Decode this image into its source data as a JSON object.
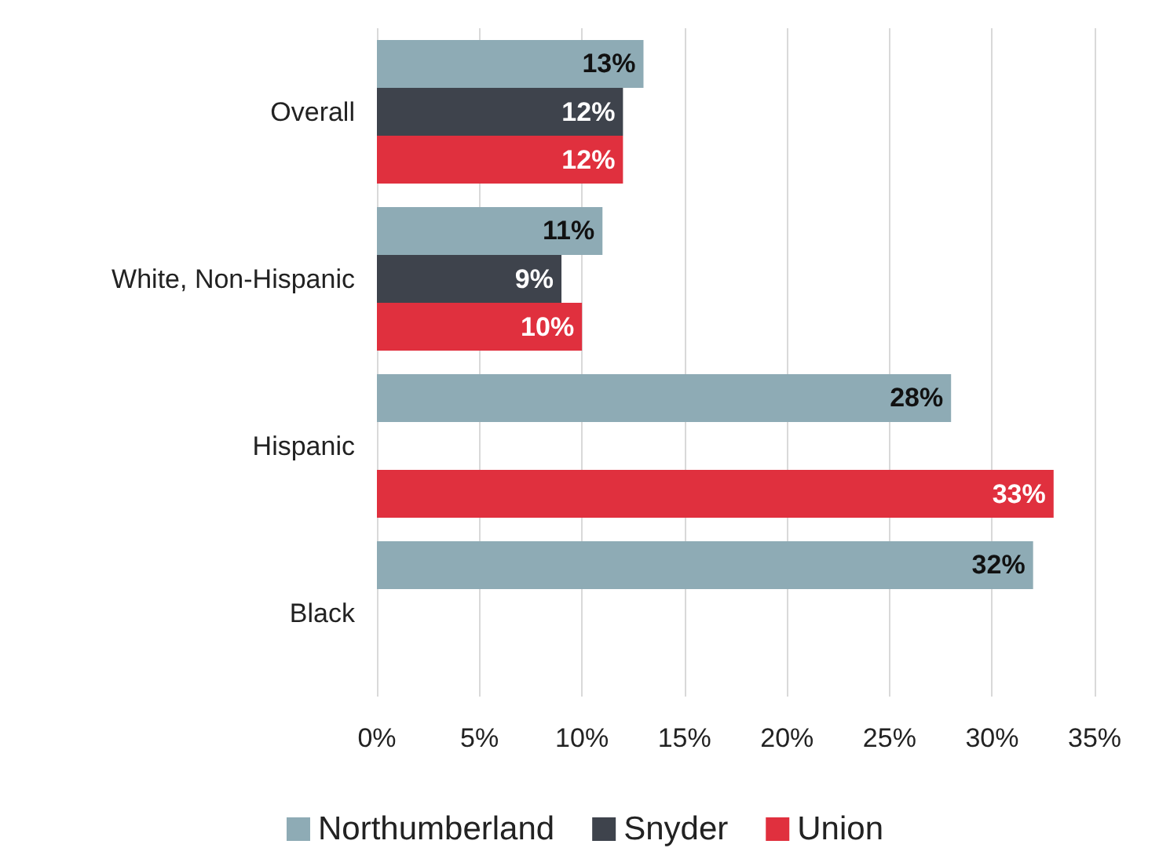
{
  "chart_data": {
    "type": "bar",
    "orientation": "horizontal",
    "categories": [
      "Overall",
      "White, Non-Hispanic",
      "Hispanic",
      "Black"
    ],
    "series": [
      {
        "name": "Northumberland",
        "color": "#8eabb5",
        "values": [
          13,
          11,
          28,
          32
        ],
        "value_labels": [
          "13%",
          "11%",
          "28%",
          "32%"
        ]
      },
      {
        "name": "Snyder",
        "color": "#3e434c",
        "values": [
          12,
          9,
          null,
          null
        ],
        "value_labels": [
          "12%",
          "9%",
          null,
          null
        ]
      },
      {
        "name": "Union",
        "color": "#e0303e",
        "values": [
          12,
          10,
          33,
          null
        ],
        "value_labels": [
          "12%",
          "10%",
          "33%",
          null
        ]
      }
    ],
    "xlim": [
      0,
      35
    ],
    "xticks": [
      {
        "value": 0,
        "label": "0%"
      },
      {
        "value": 5,
        "label": "5%"
      },
      {
        "value": 10,
        "label": "10%"
      },
      {
        "value": 15,
        "label": "15%"
      },
      {
        "value": 20,
        "label": "20%"
      },
      {
        "value": 25,
        "label": "25%"
      },
      {
        "value": 30,
        "label": "30%"
      },
      {
        "value": 35,
        "label": "35%"
      }
    ],
    "grid": "x",
    "legend": "bottom"
  }
}
